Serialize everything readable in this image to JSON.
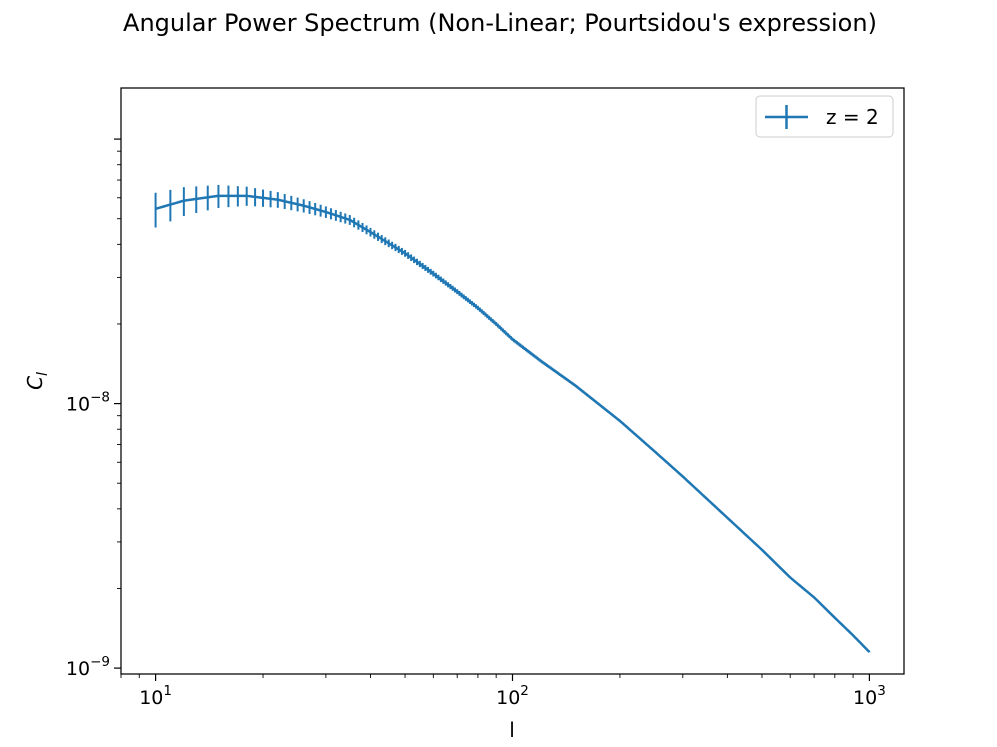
{
  "chart_data": {
    "type": "line",
    "title": "Angular Power Spectrum (Non-Linear; Pourtsidou's expression)",
    "xlabel": "l",
    "ylabel": "C",
    "ylabel_subscript": "l",
    "xscale": "log",
    "yscale": "log",
    "xlim": [
      8.0,
      1250
    ],
    "ylim": [
      9.5e-10,
      1.56e-07
    ],
    "x_ticks": [
      {
        "value": 10,
        "base": "10",
        "exp": "1"
      },
      {
        "value": 100,
        "base": "10",
        "exp": "2"
      },
      {
        "value": 1000,
        "base": "10",
        "exp": "3"
      }
    ],
    "y_ticks": [
      {
        "value": 1e-09,
        "base": "10",
        "exp": "−9"
      },
      {
        "value": 1e-08,
        "base": "10",
        "exp": "−8"
      }
    ],
    "grid": false,
    "legend": {
      "position": "top-right",
      "entries": [
        "z = 2"
      ]
    },
    "color": "#1f77b4",
    "series": [
      {
        "name": "z = 2",
        "style": "errorbar",
        "l_min": 10,
        "l_max": 1000,
        "points": [
          [
            10,
            5.45e-08
          ],
          [
            12,
            5.85e-08
          ],
          [
            15,
            6.1e-08
          ],
          [
            18,
            6.1e-08
          ],
          [
            22,
            5.9e-08
          ],
          [
            26,
            5.6e-08
          ],
          [
            30,
            5.3e-08
          ],
          [
            35,
            4.95e-08
          ],
          [
            40,
            4.45e-08
          ],
          [
            50,
            3.7e-08
          ],
          [
            60,
            3.1e-08
          ],
          [
            70,
            2.65e-08
          ],
          [
            80,
            2.3e-08
          ],
          [
            90,
            2e-08
          ],
          [
            100,
            1.75e-08
          ],
          [
            120,
            1.45e-08
          ],
          [
            150,
            1.17e-08
          ],
          [
            200,
            8.6e-09
          ],
          [
            250,
            6.6e-09
          ],
          [
            300,
            5.3e-09
          ],
          [
            400,
            3.7e-09
          ],
          [
            500,
            2.8e-09
          ],
          [
            600,
            2.2e-09
          ],
          [
            700,
            1.85e-09
          ],
          [
            800,
            1.55e-09
          ],
          [
            900,
            1.33e-09
          ],
          [
            1000,
            1.15e-09
          ]
        ],
        "rel_error": {
          "at_l10": 0.15,
          "decay_power": 1.0
        }
      }
    ]
  }
}
